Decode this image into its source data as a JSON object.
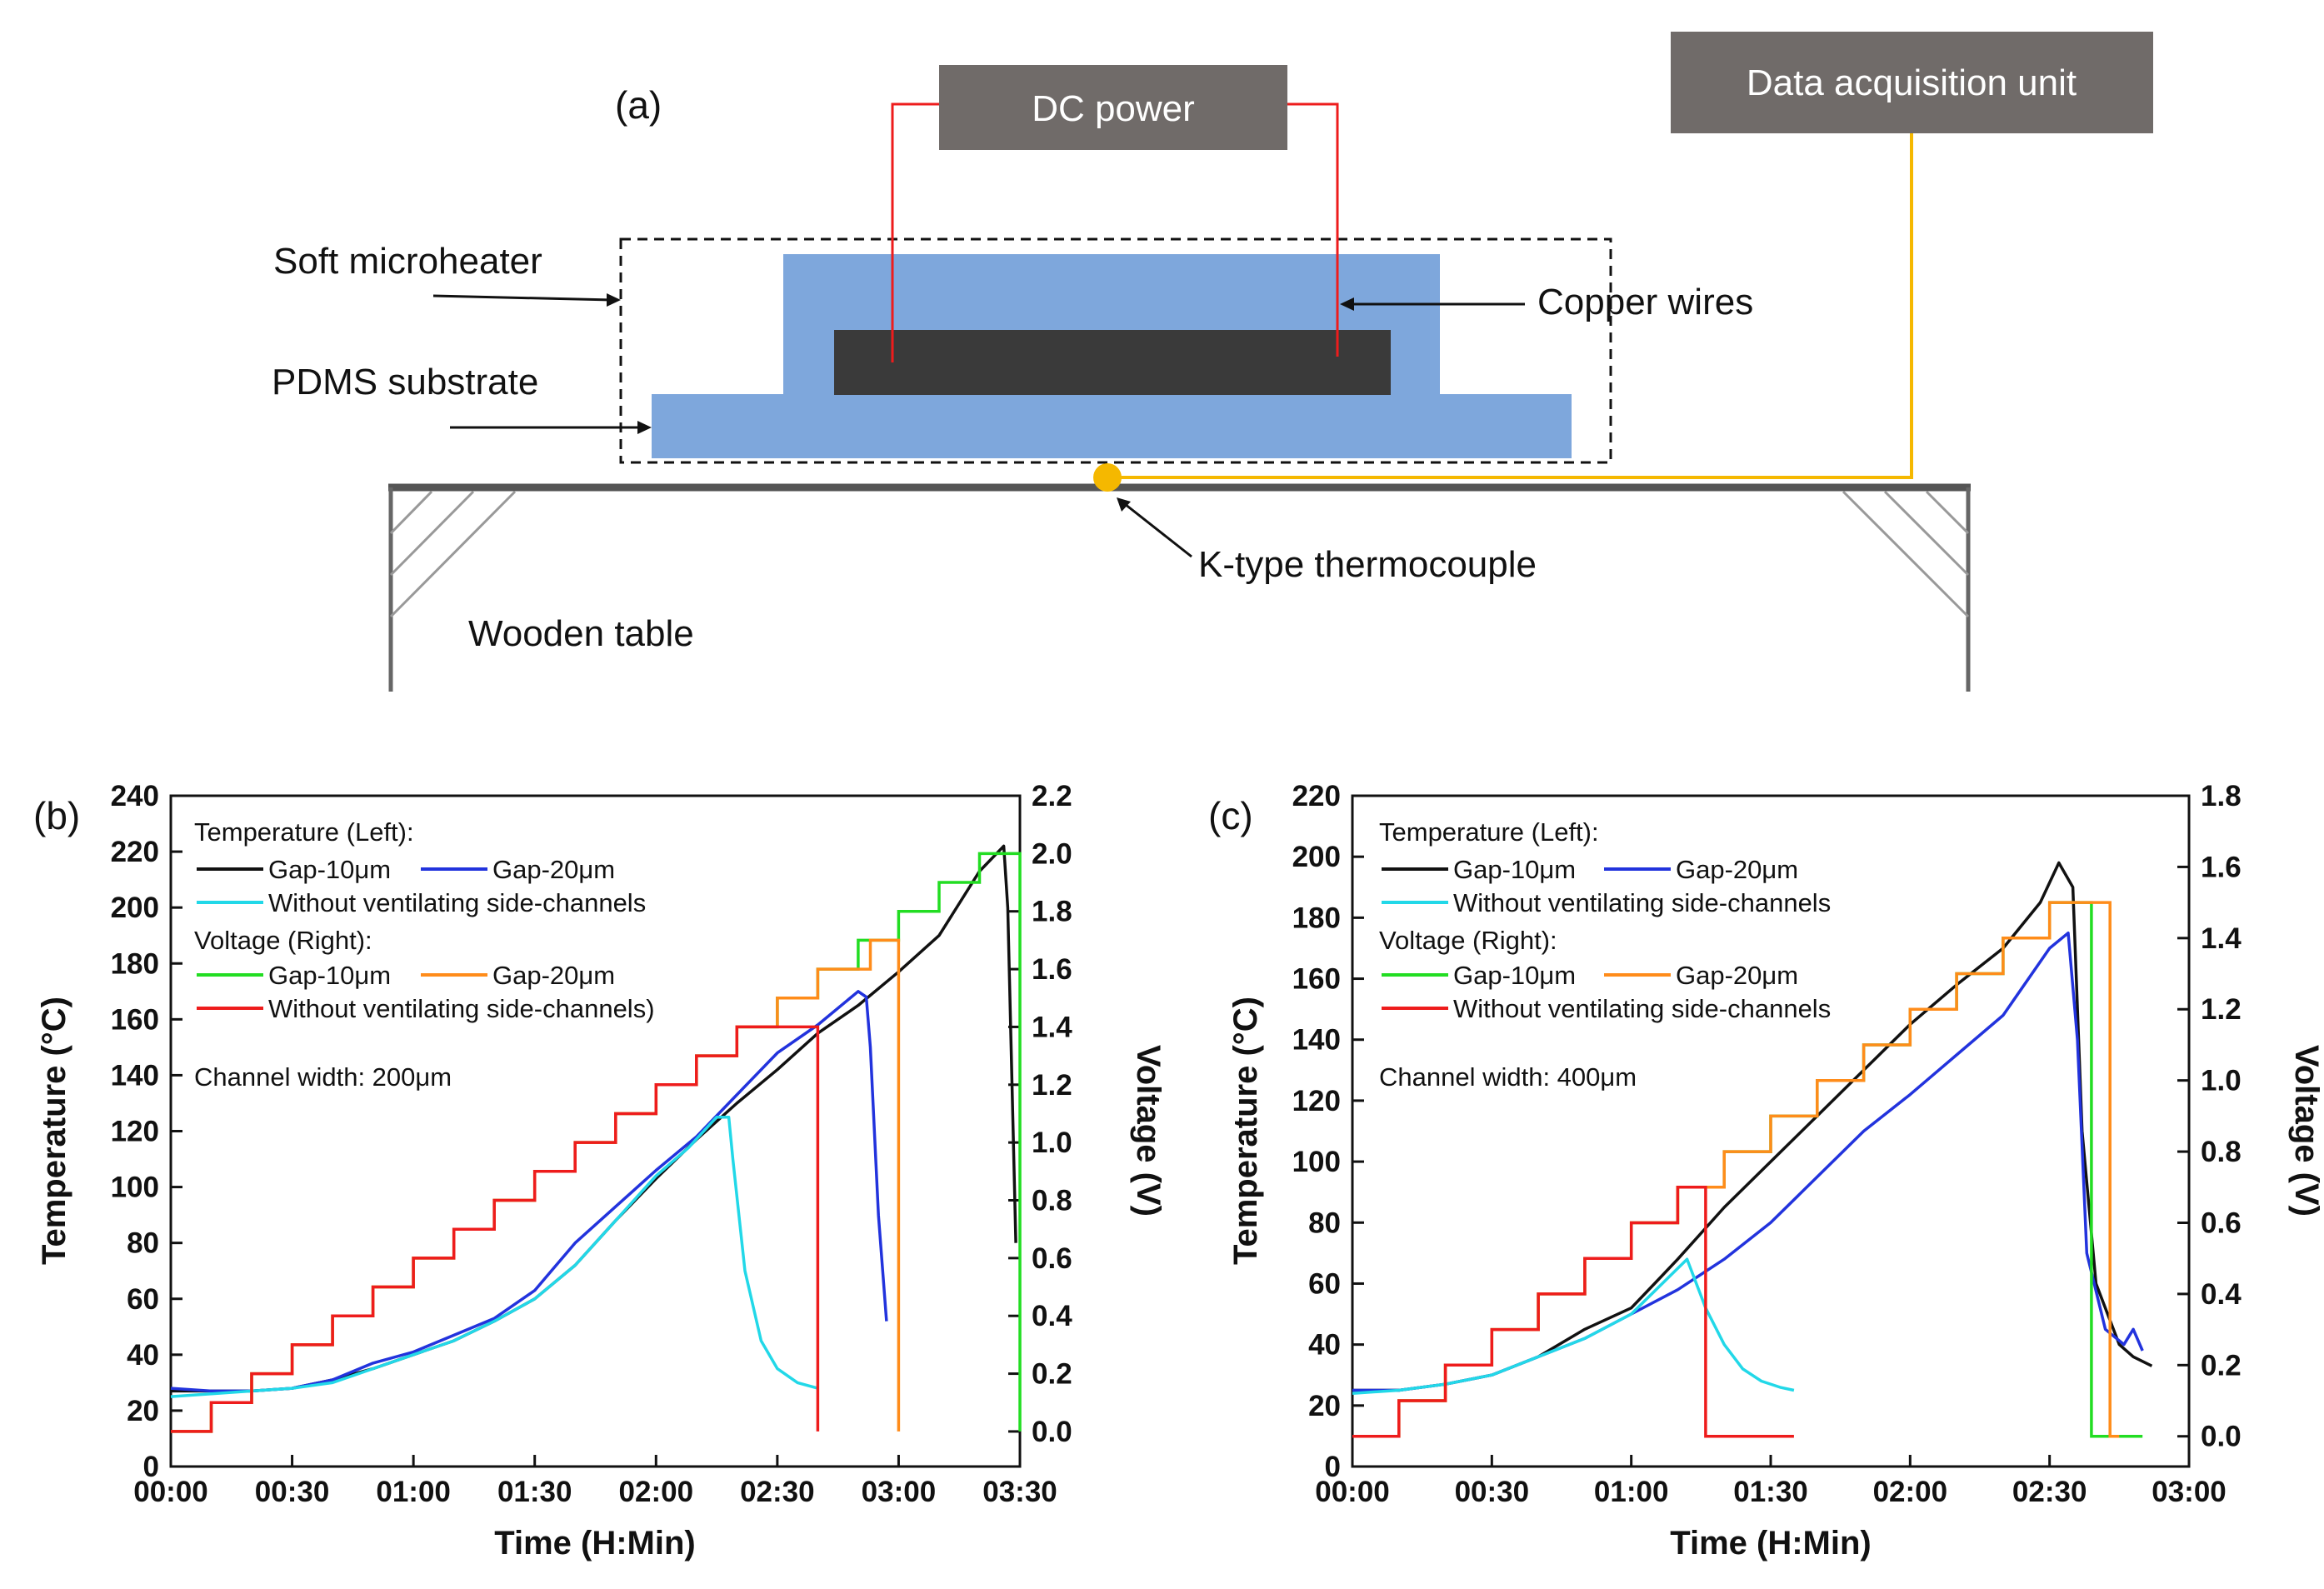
{
  "schematic": {
    "panel_label": "(a)",
    "dc_power": "DC power",
    "daq": "Data acquisition unit",
    "soft_microheater": "Soft microheater",
    "pdms_substrate": "PDMS substrate",
    "copper_wires": "Copper wires",
    "thermocouple": "K-type thermocouple",
    "wooden_table": "Wooden table",
    "colors": {
      "box": "#706b69",
      "pdms": "#7ea7dc",
      "heater": "#3a3a3a",
      "wire": "#ee1c1c",
      "signal": "#f5b800"
    }
  },
  "chart_data": [
    {
      "type": "line",
      "panel_label": "(b)",
      "xlabel": "Time (H:Min)",
      "ylabel": "Temperature (°C)",
      "y2label": "Voltage (V)",
      "x_ticks": [
        "00:00",
        "00:30",
        "01:00",
        "01:30",
        "02:00",
        "02:30",
        "03:00",
        "03:30"
      ],
      "xlim": [
        0,
        210
      ],
      "ylim": [
        0,
        240
      ],
      "y_ticks": [
        0,
        20,
        40,
        60,
        80,
        100,
        120,
        140,
        160,
        180,
        200,
        220,
        240
      ],
      "y2lim": [
        -0.1213,
        2.2
      ],
      "y2_ticks": [
        "0.0",
        "0.2",
        "0.4",
        "0.6",
        "0.8",
        "1.0",
        "1.2",
        "1.4",
        "1.6",
        "1.8",
        "2.0",
        "2.2"
      ],
      "legend_temp_header": "Temperature (Left):",
      "legend_volt_header": "Voltage (Right):",
      "annotation": "Channel width: 200μm",
      "temperature_series": [
        {
          "name": "Gap-10μm",
          "color": "#111111",
          "points": [
            [
              0,
              27
            ],
            [
              10,
              27
            ],
            [
              20,
              27
            ],
            [
              30,
              28
            ],
            [
              40,
              31
            ],
            [
              50,
              35
            ],
            [
              60,
              40
            ],
            [
              70,
              45
            ],
            [
              80,
              52
            ],
            [
              90,
              60
            ],
            [
              100,
              72
            ],
            [
              110,
              88
            ],
            [
              120,
              103
            ],
            [
              130,
              117
            ],
            [
              140,
              130
            ],
            [
              150,
              142
            ],
            [
              160,
              155
            ],
            [
              170,
              165
            ],
            [
              180,
              177
            ],
            [
              190,
              190
            ],
            [
              200,
              213
            ],
            [
              206,
              222
            ],
            [
              207,
              200
            ],
            [
              209,
              80
            ]
          ]
        },
        {
          "name": "Gap-20μm",
          "color": "#2233dd",
          "points": [
            [
              0,
              28
            ],
            [
              10,
              27
            ],
            [
              20,
              27
            ],
            [
              30,
              28
            ],
            [
              40,
              31
            ],
            [
              50,
              37
            ],
            [
              60,
              41
            ],
            [
              70,
              47
            ],
            [
              80,
              53
            ],
            [
              90,
              63
            ],
            [
              100,
              80
            ],
            [
              110,
              93
            ],
            [
              120,
              106
            ],
            [
              130,
              118
            ],
            [
              140,
              133
            ],
            [
              150,
              148
            ],
            [
              160,
              158
            ],
            [
              170,
              170
            ],
            [
              172,
              168
            ],
            [
              173,
              150
            ],
            [
              175,
              90
            ],
            [
              177,
              52
            ]
          ]
        },
        {
          "name": "Without ventilating side-channels",
          "color": "#22d8e8",
          "points": [
            [
              0,
              25
            ],
            [
              10,
              26
            ],
            [
              20,
              27
            ],
            [
              30,
              28
            ],
            [
              40,
              30
            ],
            [
              50,
              35
            ],
            [
              60,
              40
            ],
            [
              70,
              45
            ],
            [
              80,
              52
            ],
            [
              90,
              60
            ],
            [
              100,
              72
            ],
            [
              110,
              88
            ],
            [
              120,
              104
            ],
            [
              128,
              114
            ],
            [
              135,
              125
            ],
            [
              138,
              125
            ],
            [
              139,
              110
            ],
            [
              142,
              70
            ],
            [
              146,
              45
            ],
            [
              150,
              35
            ],
            [
              155,
              30
            ],
            [
              160,
              28
            ]
          ]
        }
      ],
      "voltage_series": [
        {
          "name": "Gap-10μm",
          "color": "#22dd22",
          "points": [
            [
              0,
              0.0
            ],
            [
              10,
              0.1
            ],
            [
              20,
              0.2
            ],
            [
              30,
              0.3
            ],
            [
              40,
              0.4
            ],
            [
              50,
              0.5
            ],
            [
              60,
              0.6
            ],
            [
              70,
              0.7
            ],
            [
              80,
              0.8
            ],
            [
              90,
              0.9
            ],
            [
              100,
              1.0
            ],
            [
              110,
              1.1
            ],
            [
              120,
              1.2
            ],
            [
              130,
              1.3
            ],
            [
              140,
              1.4
            ],
            [
              150,
              1.5
            ],
            [
              160,
              1.6
            ],
            [
              170,
              1.7
            ],
            [
              180,
              1.8
            ],
            [
              190,
              1.9
            ],
            [
              200,
              2.0
            ],
            [
              210,
              2.0
            ]
          ]
        },
        {
          "name": "Gap-20μm",
          "color": "#ff8c1a",
          "points": [
            [
              0,
              0.0
            ],
            [
              10,
              0.1
            ],
            [
              20,
              0.2
            ],
            [
              30,
              0.3
            ],
            [
              40,
              0.4
            ],
            [
              50,
              0.5
            ],
            [
              60,
              0.6
            ],
            [
              70,
              0.7
            ],
            [
              80,
              0.8
            ],
            [
              90,
              0.9
            ],
            [
              100,
              1.0
            ],
            [
              110,
              1.1
            ],
            [
              120,
              1.2
            ],
            [
              130,
              1.3
            ],
            [
              140,
              1.4
            ],
            [
              150,
              1.5
            ],
            [
              160,
              1.6
            ],
            [
              173,
              1.7
            ],
            [
              176,
              1.7
            ],
            [
              180,
              1.7
            ]
          ]
        },
        {
          "name": "Without ventilating side-channels)",
          "color": "#ee1c1c",
          "points": [
            [
              0,
              0.0
            ],
            [
              10,
              0.1
            ],
            [
              20,
              0.2
            ],
            [
              30,
              0.3
            ],
            [
              40,
              0.4
            ],
            [
              50,
              0.5
            ],
            [
              60,
              0.6
            ],
            [
              70,
              0.7
            ],
            [
              80,
              0.8
            ],
            [
              90,
              0.9
            ],
            [
              100,
              1.0
            ],
            [
              110,
              1.1
            ],
            [
              120,
              1.2
            ],
            [
              130,
              1.3
            ],
            [
              140,
              1.4
            ],
            [
              145,
              1.4
            ],
            [
              160,
              1.4
            ]
          ]
        }
      ]
    },
    {
      "type": "line",
      "panel_label": "(c)",
      "xlabel": "Time (H:Min)",
      "ylabel": "Temperature (°C)",
      "y2label": "Voltage (V)",
      "x_ticks": [
        "00:00",
        "00:30",
        "01:00",
        "01:30",
        "02:00",
        "02:30",
        "03:00"
      ],
      "xlim": [
        0,
        180
      ],
      "ylim": [
        0,
        220
      ],
      "y_ticks": [
        0,
        20,
        40,
        60,
        80,
        100,
        120,
        140,
        160,
        180,
        200,
        220
      ],
      "y2lim": [
        -0.0849,
        1.8
      ],
      "y2_ticks": [
        "0.0",
        "0.2",
        "0.4",
        "0.6",
        "0.8",
        "1.0",
        "1.2",
        "1.4",
        "1.6",
        "1.8"
      ],
      "legend_temp_header": "Temperature (Left):",
      "legend_volt_header": "Voltage (Right):",
      "annotation": "Channel width: 400μm",
      "temperature_series": [
        {
          "name": "Gap-10μm",
          "color": "#111111",
          "points": [
            [
              0,
              25
            ],
            [
              10,
              25
            ],
            [
              20,
              27
            ],
            [
              30,
              30
            ],
            [
              40,
              36
            ],
            [
              50,
              45
            ],
            [
              60,
              52
            ],
            [
              65,
              60
            ],
            [
              70,
              68
            ],
            [
              80,
              85
            ],
            [
              90,
              100
            ],
            [
              100,
              115
            ],
            [
              110,
              130
            ],
            [
              120,
              145
            ],
            [
              130,
              158
            ],
            [
              140,
              170
            ],
            [
              148,
              185
            ],
            [
              152,
              198
            ],
            [
              155,
              190
            ],
            [
              157,
              110
            ],
            [
              160,
              60
            ],
            [
              165,
              40
            ],
            [
              168,
              36
            ],
            [
              172,
              33
            ]
          ]
        },
        {
          "name": "Gap-20μm",
          "color": "#2233dd",
          "points": [
            [
              0,
              25
            ],
            [
              10,
              25
            ],
            [
              20,
              27
            ],
            [
              30,
              30
            ],
            [
              40,
              36
            ],
            [
              50,
              42
            ],
            [
              60,
              50
            ],
            [
              70,
              58
            ],
            [
              80,
              68
            ],
            [
              90,
              80
            ],
            [
              100,
              95
            ],
            [
              110,
              110
            ],
            [
              120,
              122
            ],
            [
              130,
              135
            ],
            [
              140,
              148
            ],
            [
              150,
              170
            ],
            [
              154,
              175
            ],
            [
              156,
              140
            ],
            [
              158,
              70
            ],
            [
              162,
              45
            ],
            [
              166,
              40
            ],
            [
              168,
              45
            ],
            [
              170,
              38
            ]
          ]
        },
        {
          "name": "Without ventilating side-channels",
          "color": "#22d8e8",
          "points": [
            [
              0,
              24
            ],
            [
              10,
              25
            ],
            [
              20,
              27
            ],
            [
              30,
              30
            ],
            [
              40,
              36
            ],
            [
              50,
              42
            ],
            [
              60,
              50
            ],
            [
              68,
              62
            ],
            [
              72,
              68
            ],
            [
              74,
              60
            ],
            [
              76,
              52
            ],
            [
              80,
              40
            ],
            [
              84,
              32
            ],
            [
              88,
              28
            ],
            [
              92,
              26
            ],
            [
              95,
              25
            ]
          ]
        }
      ],
      "voltage_series": [
        {
          "name": "Gap-10μm",
          "color": "#22dd22",
          "points": [
            [
              0,
              0.0
            ],
            [
              10,
              0.1
            ],
            [
              20,
              0.2
            ],
            [
              30,
              0.3
            ],
            [
              40,
              0.4
            ],
            [
              50,
              0.5
            ],
            [
              60,
              0.6
            ],
            [
              70,
              0.7
            ],
            [
              80,
              0.8
            ],
            [
              90,
              0.9
            ],
            [
              100,
              1.0
            ],
            [
              110,
              1.1
            ],
            [
              120,
              1.2
            ],
            [
              130,
              1.3
            ],
            [
              140,
              1.4
            ],
            [
              150,
              1.5
            ],
            [
              158,
              1.5
            ],
            [
              159,
              0.0
            ],
            [
              170,
              0.0
            ]
          ]
        },
        {
          "name": "Gap-20μm",
          "color": "#ff8c1a",
          "points": [
            [
              0,
              0.0
            ],
            [
              10,
              0.1
            ],
            [
              20,
              0.2
            ],
            [
              30,
              0.3
            ],
            [
              40,
              0.4
            ],
            [
              50,
              0.5
            ],
            [
              60,
              0.6
            ],
            [
              70,
              0.7
            ],
            [
              80,
              0.8
            ],
            [
              90,
              0.9
            ],
            [
              100,
              1.0
            ],
            [
              110,
              1.1
            ],
            [
              120,
              1.2
            ],
            [
              130,
              1.3
            ],
            [
              140,
              1.4
            ],
            [
              150,
              1.5
            ],
            [
              162,
              1.5
            ],
            [
              163,
              0.0
            ],
            [
              165,
              0.0
            ]
          ]
        },
        {
          "name": "Without ventilating side-channels",
          "color": "#ee1c1c",
          "points": [
            [
              0,
              0.0
            ],
            [
              10,
              0.1
            ],
            [
              20,
              0.2
            ],
            [
              30,
              0.3
            ],
            [
              40,
              0.4
            ],
            [
              50,
              0.5
            ],
            [
              60,
              0.6
            ],
            [
              70,
              0.7
            ],
            [
              75,
              0.7
            ],
            [
              76,
              0.0
            ],
            [
              95,
              0.0
            ]
          ]
        }
      ]
    }
  ]
}
